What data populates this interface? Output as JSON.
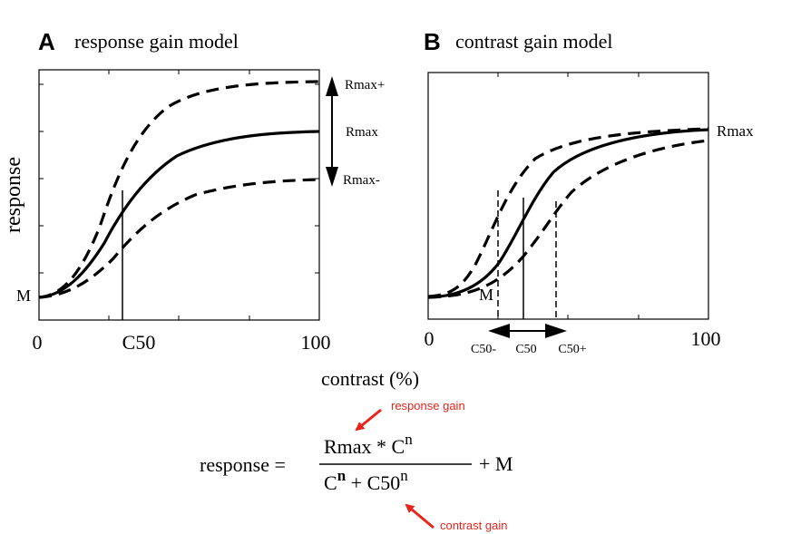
{
  "panel_a": {
    "letter": "A",
    "title": "response gain model",
    "ylabel": "response",
    "baseline_label": "M",
    "x_min_label": "0",
    "x_mid_label": "C50",
    "x_max_label": "100",
    "rmax_plus_label": "Rmax+",
    "rmax_label": "Rmax",
    "rmax_minus_label": "Rmax-"
  },
  "panel_b": {
    "letter": "B",
    "title": "contrast gain model",
    "baseline_label": "M",
    "x_min_label": "0",
    "x_max_label": "100",
    "rmax_label": "Rmax",
    "c50_minus_label": "C50-",
    "c50_label": "C50",
    "c50_plus_label": "C50+"
  },
  "xlabel": "contrast (%)",
  "equation": {
    "lhs": "response =",
    "numerator": "Rmax * C",
    "numerator_exp": "n",
    "denominator_c": "C",
    "denominator_c_exp": "n",
    "denominator_plus": " + C50",
    "denominator_c50_exp": "n",
    "tail": "+ M"
  },
  "annotations": {
    "response_gain": "response gain",
    "contrast_gain": "contrast  gain",
    "color": "#e8241c"
  }
}
